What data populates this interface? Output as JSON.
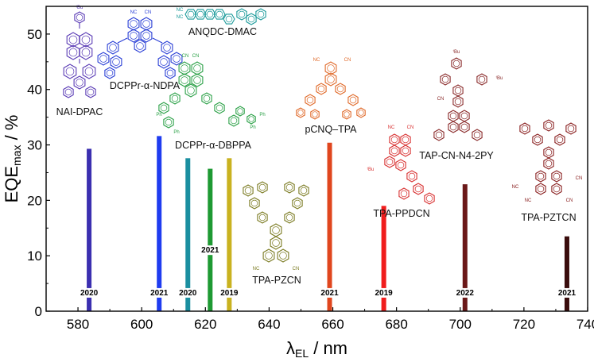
{
  "chart_data": {
    "type": "bar",
    "xlabel_main": "λ",
    "xlabel_sub": "EL",
    "xlabel_unit": " / nm",
    "ylabel_main": "EQE",
    "ylabel_sub": "max",
    "ylabel_unit": " / %",
    "xlim": [
      570,
      740
    ],
    "ylim": [
      0,
      55
    ],
    "xticks": [
      580,
      600,
      620,
      640,
      660,
      680,
      700,
      720,
      740
    ],
    "yticks": [
      0,
      10,
      20,
      30,
      40,
      50
    ],
    "grid": false,
    "bars": [
      {
        "x": 583.5,
        "value": 29.3,
        "year": "2020",
        "color": "#3b2fb0",
        "yearY": 2.3
      },
      {
        "x": 605.5,
        "value": 31.6,
        "year": "2021",
        "color": "#1f3cf0",
        "yearY": 2.3
      },
      {
        "x": 614.5,
        "value": 27.6,
        "year": "2020",
        "color": "#1b8fa0",
        "yearY": 2.3
      },
      {
        "x": 621.5,
        "value": 25.7,
        "year": "2021",
        "color": "#1e9a33",
        "yearY": 10.0
      },
      {
        "x": 627.5,
        "value": 27.6,
        "year": "2019",
        "color": "#c9b21f",
        "yearY": 2.3
      },
      {
        "x": 659.0,
        "value": 30.4,
        "year": "2021",
        "color": "#e0461e",
        "yearY": 2.3
      },
      {
        "x": 676.0,
        "value": 19.0,
        "year": "2019",
        "color": "#f01d1d",
        "yearY": 2.3
      },
      {
        "x": 701.5,
        "value": 22.9,
        "year": "2022",
        "color": "#6b1818",
        "yearY": 2.3
      },
      {
        "x": 733.5,
        "value": 13.5,
        "year": "2021",
        "color": "#3a0d0d",
        "yearY": 2.3
      }
    ],
    "structures": [
      {
        "label": "NAI-DPAC",
        "color": "#5a3bb5"
      },
      {
        "label": "DCPPr-α-NDPA",
        "color": "#2a3fd6"
      },
      {
        "label": "ANQDC-DMAC",
        "color": "#1a9a9a"
      },
      {
        "label": "DCPPr-α-DBPPA",
        "color": "#2aa046"
      },
      {
        "label": "TPA-PZCN",
        "color": "#7a7a20"
      },
      {
        "label": "pCNQ–TPA",
        "color": "#e06a2a"
      },
      {
        "label": "TPA-PPDCN",
        "color": "#d83030"
      },
      {
        "label": "TAP-CN-N4-2PY",
        "color": "#8a2a2a"
      },
      {
        "label": "TPA-PZTCN",
        "color": "#8a2020"
      }
    ],
    "structure_atom_labels": {
      "cn": "CN",
      "nc": "NC",
      "tbu": "ᵗBu",
      "ph": "Ph"
    }
  }
}
